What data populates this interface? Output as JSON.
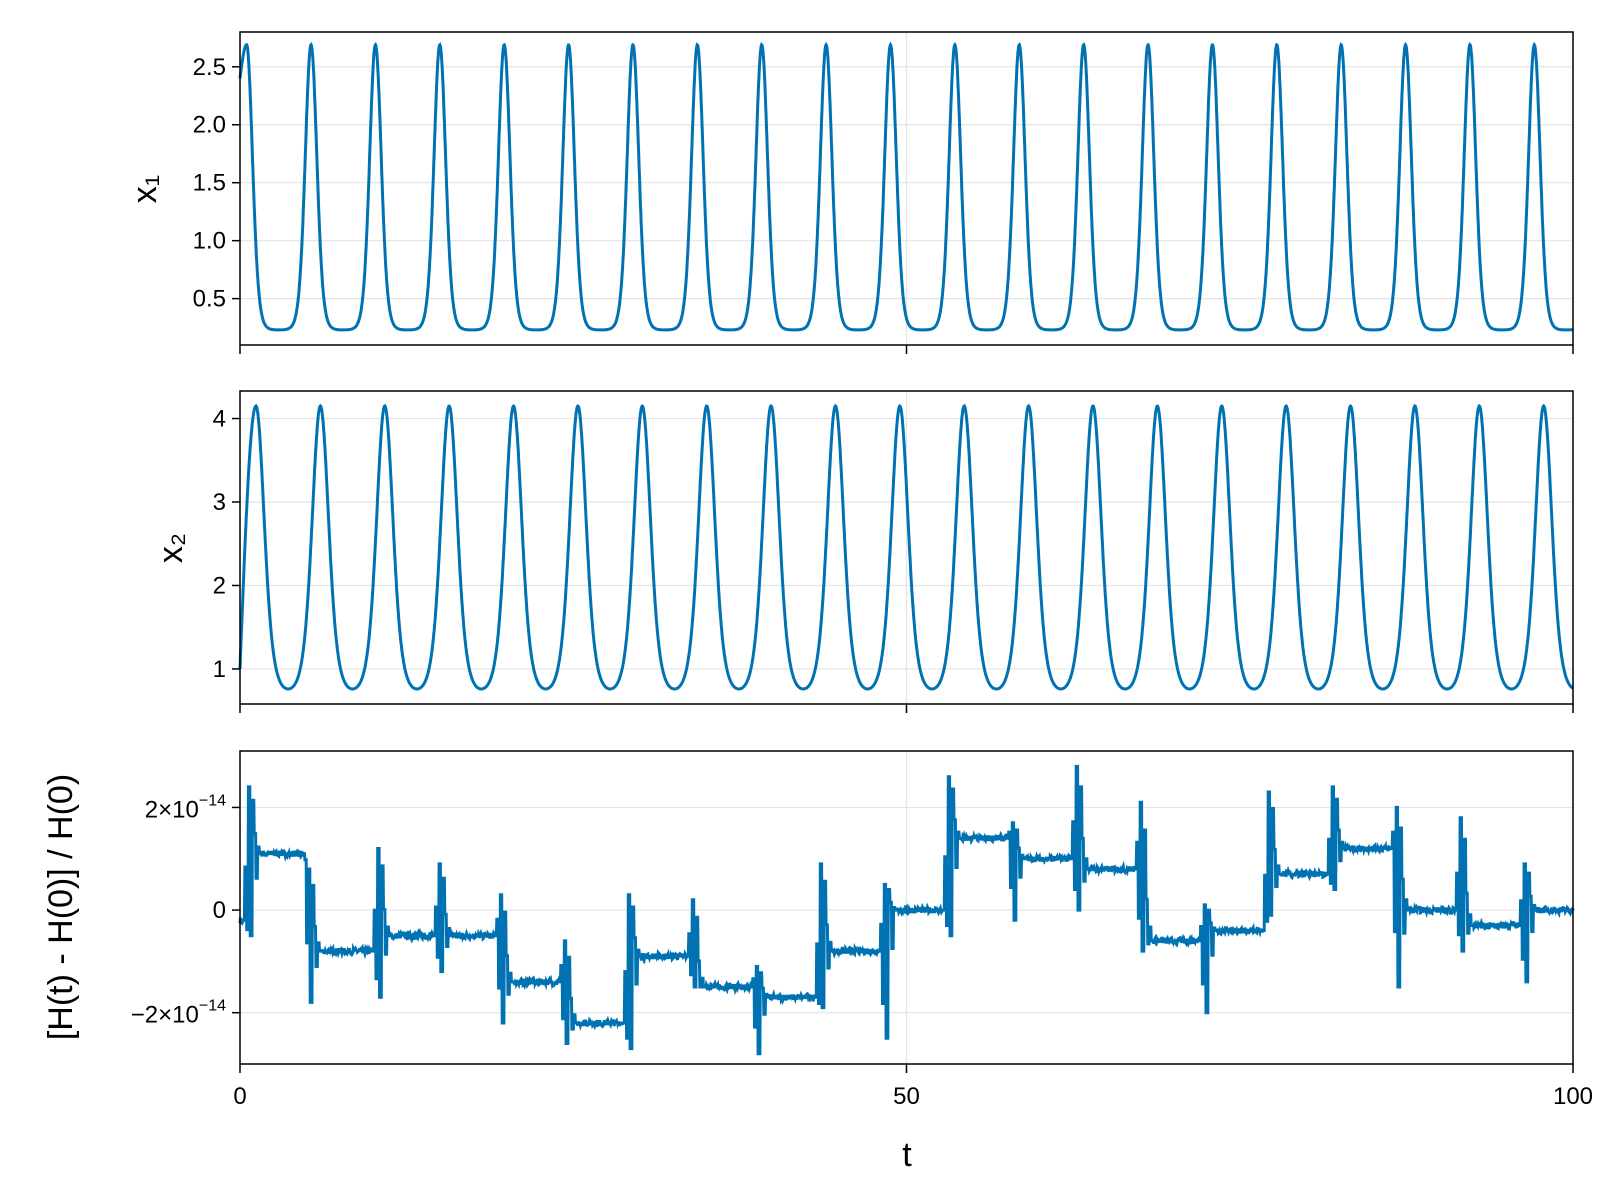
{
  "chart_data": [
    {
      "type": "line",
      "ylabel": "x₁",
      "xlim": [
        0,
        100
      ],
      "ylim": [
        0.1,
        2.8
      ],
      "yticks": [
        "0.5",
        "1.0",
        "1.5",
        "2.0",
        "2.5"
      ],
      "ytick_values": [
        0.5,
        1.0,
        1.5,
        2.0,
        2.5
      ],
      "xtick_values": [
        0,
        50,
        100
      ],
      "grid": true,
      "color": "#0072b2",
      "signal": {
        "kind": "periodic-pulses",
        "start": 2.4,
        "peak": 2.69,
        "trough": 0.23,
        "period": 4.83,
        "first_peak_t": 0.5,
        "end": 0.36
      }
    },
    {
      "type": "line",
      "ylabel": "x₂",
      "xlim": [
        0,
        100
      ],
      "ylim": [
        0.58,
        4.33
      ],
      "yticks": [
        "1",
        "2",
        "3",
        "4"
      ],
      "ytick_values": [
        1,
        2,
        3,
        4
      ],
      "xtick_values": [
        0,
        50,
        100
      ],
      "grid": true,
      "color": "#0072b2",
      "signal": {
        "kind": "periodic-pulses",
        "start": 1.0,
        "peak": 4.15,
        "trough": 0.76,
        "period": 4.83,
        "first_peak_t": 1.2,
        "end": 1.1
      }
    },
    {
      "type": "line",
      "ylabel": "[H(t) - H(0)] / H(0)",
      "xlabel": "t",
      "xlim": [
        0,
        100
      ],
      "ylim": [
        -3e-14,
        3.1e-14
      ],
      "yticks_mantissa": [
        "2×10",
        "0",
        "−2×10"
      ],
      "yticks_exponent": [
        "−14",
        "",
        "−14"
      ],
      "ytick_values": [
        2e-14,
        0,
        -2e-14
      ],
      "xticks": [
        "0",
        "50",
        "100"
      ],
      "xtick_values": [
        0,
        50,
        100
      ],
      "grid": true,
      "color": "#0072b2",
      "segments": [
        {
          "t0": 0.0,
          "t1": 0.9,
          "level": -0.2
        },
        {
          "t0": 0.9,
          "t1": 5.4,
          "level": 1.1
        },
        {
          "t0": 5.4,
          "t1": 10.6,
          "level": -0.8
        },
        {
          "t0": 10.6,
          "t1": 15.2,
          "level": -0.5
        },
        {
          "t0": 15.2,
          "t1": 19.8,
          "level": -0.5
        },
        {
          "t0": 19.8,
          "t1": 24.6,
          "level": -1.4
        },
        {
          "t0": 24.6,
          "t1": 29.4,
          "level": -2.2
        },
        {
          "t0": 29.4,
          "t1": 34.2,
          "level": -0.9
        },
        {
          "t0": 34.2,
          "t1": 39.0,
          "level": -1.5
        },
        {
          "t0": 39.0,
          "t1": 43.8,
          "level": -1.7
        },
        {
          "t0": 43.8,
          "t1": 48.6,
          "level": -0.8
        },
        {
          "t0": 48.6,
          "t1": 53.4,
          "level": 0.0
        },
        {
          "t0": 53.4,
          "t1": 58.2,
          "level": 1.4
        },
        {
          "t0": 58.2,
          "t1": 63.0,
          "level": 1.0
        },
        {
          "t0": 63.0,
          "t1": 67.8,
          "level": 0.8
        },
        {
          "t0": 67.8,
          "t1": 72.6,
          "level": -0.6
        },
        {
          "t0": 72.6,
          "t1": 77.4,
          "level": -0.4
        },
        {
          "t0": 77.4,
          "t1": 82.2,
          "level": 0.7
        },
        {
          "t0": 82.2,
          "t1": 87.0,
          "level": 1.2
        },
        {
          "t0": 87.0,
          "t1": 91.8,
          "level": 0.0
        },
        {
          "t0": 91.8,
          "t1": 96.6,
          "level": -0.3
        },
        {
          "t0": 96.6,
          "t1": 100.0,
          "level": 0.0
        }
      ],
      "spikes": [
        {
          "t": 0.9,
          "up": 2.4,
          "down": -0.5
        },
        {
          "t": 5.4,
          "up": 0.8,
          "down": -1.8
        },
        {
          "t": 10.6,
          "up": 1.2,
          "down": -1.7
        },
        {
          "t": 15.2,
          "up": 0.9,
          "down": -1.2
        },
        {
          "t": 19.8,
          "up": 0.3,
          "down": -2.2
        },
        {
          "t": 24.6,
          "up": -0.6,
          "down": -2.6
        },
        {
          "t": 29.4,
          "up": 0.3,
          "down": -2.7
        },
        {
          "t": 34.2,
          "up": 0.2,
          "down": -1.5
        },
        {
          "t": 39.0,
          "up": -1.1,
          "down": -2.8
        },
        {
          "t": 43.8,
          "up": 0.9,
          "down": -1.9
        },
        {
          "t": 48.6,
          "up": 0.5,
          "down": -2.5
        },
        {
          "t": 53.4,
          "up": 2.6,
          "down": -0.5
        },
        {
          "t": 58.2,
          "up": 1.7,
          "down": -0.2
        },
        {
          "t": 63.0,
          "up": 2.8,
          "down": 0.0
        },
        {
          "t": 67.8,
          "up": 2.1,
          "down": -0.8
        },
        {
          "t": 72.6,
          "up": 0.1,
          "down": -2.0
        },
        {
          "t": 77.4,
          "up": 2.3,
          "down": -0.1
        },
        {
          "t": 82.2,
          "up": 2.4,
          "down": 0.4
        },
        {
          "t": 87.0,
          "up": 2.0,
          "down": -1.5
        },
        {
          "t": 91.8,
          "up": 1.8,
          "down": -0.8
        },
        {
          "t": 96.6,
          "up": 0.9,
          "down": -1.4
        }
      ]
    }
  ]
}
